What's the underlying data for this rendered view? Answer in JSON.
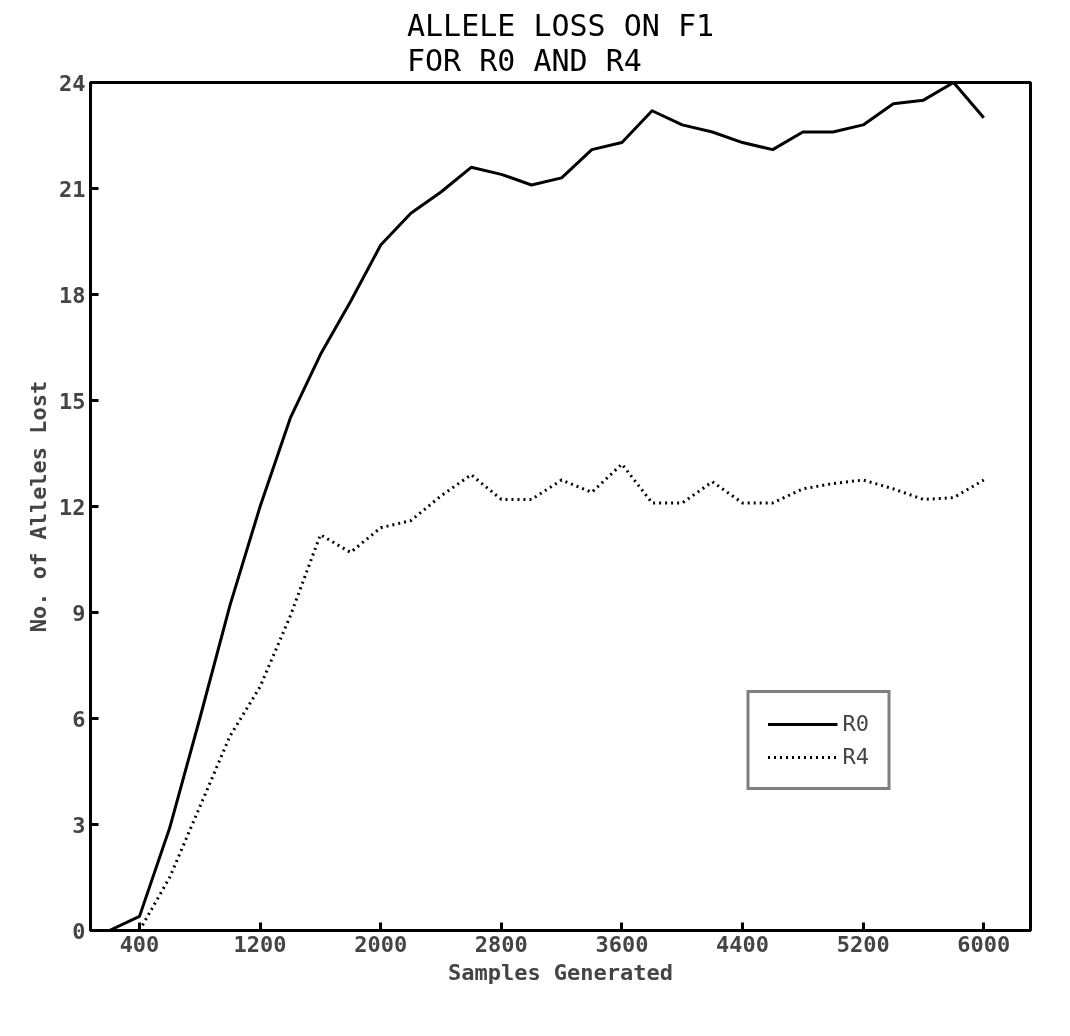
{
  "chart_data": {
    "type": "line",
    "title": "ALLELE LOSS ON F1\nFOR R0 AND R4",
    "xlabel": "Samples Generated",
    "ylabel": "No. of Alleles Lost",
    "xlim": [
      75,
      6310
    ],
    "ylim": [
      0,
      24
    ],
    "xticks": [
      400,
      1200,
      2000,
      2800,
      3600,
      4400,
      5200,
      6000
    ],
    "yticks": [
      0,
      3,
      6,
      9,
      12,
      15,
      18,
      21,
      24
    ],
    "grid": false,
    "legend": "bottom right",
    "marker": "none",
    "series": [
      {
        "name": "R0",
        "color": "#000000",
        "line_style": "solid",
        "x": [
          200,
          400,
          600,
          800,
          1000,
          1200,
          1400,
          1600,
          1800,
          2000,
          2200,
          2400,
          2600,
          2800,
          3000,
          3200,
          3400,
          3600,
          3800,
          4000,
          4200,
          4400,
          4600,
          4800,
          5000,
          5200,
          5400,
          5600,
          5800,
          6000
        ],
        "values": [
          0,
          0.4,
          2.9,
          6.0,
          9.2,
          12.0,
          14.5,
          16.3,
          17.8,
          19.4,
          20.3,
          20.9,
          21.6,
          21.4,
          21.1,
          21.3,
          22.1,
          22.3,
          23.2,
          22.8,
          22.6,
          22.3,
          22.1,
          22.6,
          22.6,
          22.8,
          23.4,
          23.5,
          24.0,
          23.0
        ]
      },
      {
        "name": "R4",
        "color": "#000000",
        "line_style": "dotted",
        "x": [
          400,
          600,
          800,
          1000,
          1200,
          1400,
          1600,
          1800,
          2000,
          2200,
          2400,
          2600,
          2800,
          3000,
          3200,
          3400,
          3600,
          3800,
          4000,
          4200,
          4400,
          4600,
          4800,
          5000,
          5200,
          5400,
          5600,
          5800,
          6000
        ],
        "values": [
          0,
          1.5,
          3.5,
          5.5,
          6.9,
          8.9,
          11.2,
          10.7,
          11.4,
          11.6,
          12.3,
          12.9,
          12.2,
          12.2,
          12.75,
          12.4,
          13.2,
          12.1,
          12.1,
          12.7,
          12.1,
          12.1,
          12.5,
          12.65,
          12.75,
          12.5,
          12.2,
          12.25,
          12.75
        ]
      }
    ]
  }
}
